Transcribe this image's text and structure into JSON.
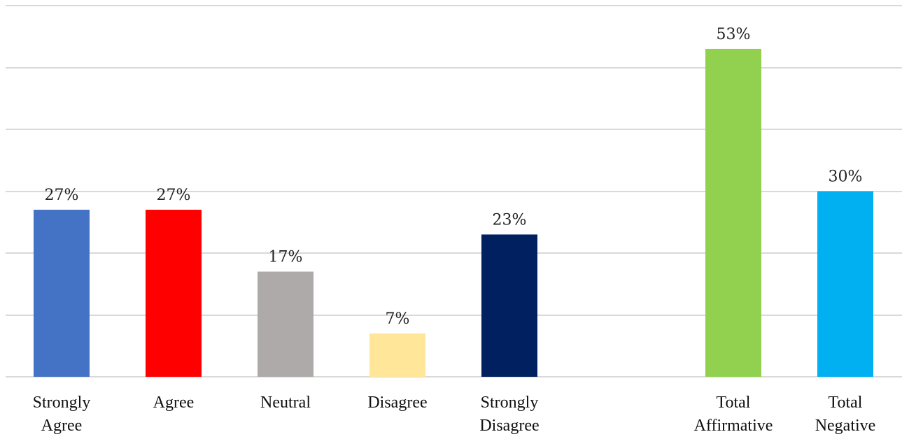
{
  "chart_data": {
    "type": "bar",
    "title": "",
    "xlabel": "",
    "ylabel": "",
    "ylim": [
      0,
      60
    ],
    "grid": true,
    "legend": "none",
    "categories": [
      [
        "Strongly",
        "Agree"
      ],
      [
        "Agree"
      ],
      [
        "Neutral"
      ],
      [
        "Disagree"
      ],
      [
        "Strongly",
        "Disagree"
      ],
      [
        "Total",
        "Affirmative"
      ],
      [
        "Total",
        "Negative"
      ]
    ],
    "values": [
      27,
      27,
      17,
      7,
      23,
      53,
      30
    ],
    "labels": [
      "27%",
      "27%",
      "17%",
      "7%",
      "23%",
      "53%",
      "30%"
    ],
    "colors": [
      "#4472C4",
      "#FF0000",
      "#ADAAA9",
      "#FFE699",
      "#002060",
      "#92D050",
      "#00B0F0"
    ]
  }
}
